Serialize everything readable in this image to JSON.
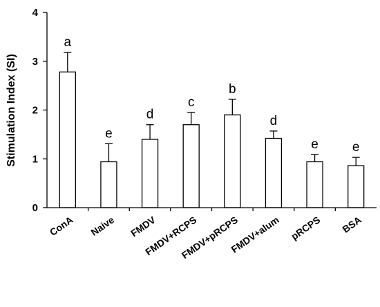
{
  "chart_data": {
    "type": "bar",
    "ylabel": "Stimulation Index (SI)",
    "xlabel": "",
    "ylim": [
      0,
      4
    ],
    "yticks": [
      0,
      1,
      2,
      3,
      4
    ],
    "grid": false,
    "categories": [
      "ConA",
      "Naive",
      "FMDV",
      "FMDV+RCPS",
      "FMDV+pRCPS",
      "FMDV+alum",
      "pRCPS",
      "BSA"
    ],
    "values": [
      2.78,
      0.94,
      1.4,
      1.7,
      1.9,
      1.42,
      0.94,
      0.86
    ],
    "errors": [
      0.4,
      0.37,
      0.3,
      0.25,
      0.32,
      0.15,
      0.15,
      0.17
    ],
    "significance": [
      "a",
      "e",
      "d",
      "c",
      "b",
      "d",
      "e",
      "e"
    ],
    "colors": {
      "bar_fill": "#ffffff",
      "bar_stroke": "#000000",
      "axis": "#000000"
    }
  }
}
